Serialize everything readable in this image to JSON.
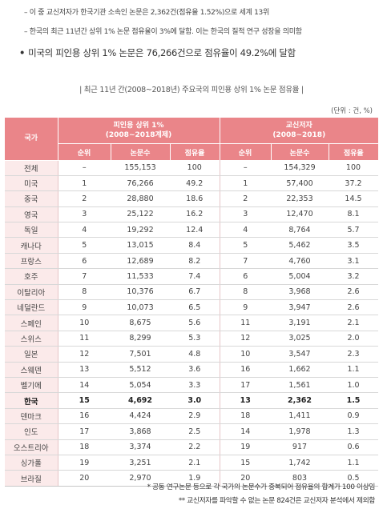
{
  "bullets": {
    "line1": "– 이 중 교신저자가 한국기관 소속인 논문은 2,362건(점유율 1.52%)으로 세계 13위",
    "line2": "– 한국의 최근 11년간 상위 1% 논문 점유율이 3%에 달함. 이는 한국의 질적 연구 성장을 의미함",
    "main_dot": "•",
    "main": "미국의 피인용 상위 1% 논문은 76,266건으로 점유율이 49.2%에 달함"
  },
  "caption": "| 최근 11년 간(2008~2018년) 주요국의 피인용 상위 1% 논문 점유율 |",
  "unit": "(단위 : 건, %)",
  "table": {
    "header": {
      "country": "국가",
      "group1": "피인용 상위 1%",
      "group1_sub": "(2008~2018계제)",
      "group2": "교신저자",
      "group2_sub": "(2008~2018)",
      "rank": "순위",
      "count": "논문수",
      "share": "점유율"
    },
    "rows": [
      [
        "전체",
        "–",
        "155,153",
        "100",
        "–",
        "154,329",
        "100"
      ],
      [
        "미국",
        "1",
        "76,266",
        "49.2",
        "1",
        "57,400",
        "37.2"
      ],
      [
        "중국",
        "2",
        "28,880",
        "18.6",
        "2",
        "22,353",
        "14.5"
      ],
      [
        "영국",
        "3",
        "25,122",
        "16.2",
        "3",
        "12,470",
        "8.1"
      ],
      [
        "독일",
        "4",
        "19,292",
        "12.4",
        "4",
        "8,764",
        "5.7"
      ],
      [
        "캐나다",
        "5",
        "13,015",
        "8.4",
        "5",
        "5,462",
        "3.5"
      ],
      [
        "프랑스",
        "6",
        "12,689",
        "8.2",
        "7",
        "4,760",
        "3.1"
      ],
      [
        "호주",
        "7",
        "11,533",
        "7.4",
        "6",
        "5,004",
        "3.2"
      ],
      [
        "이탈리아",
        "8",
        "10,376",
        "6.7",
        "8",
        "3,968",
        "2.6"
      ],
      [
        "네덜란드",
        "9",
        "10,073",
        "6.5",
        "9",
        "3,947",
        "2.6"
      ],
      [
        "스페인",
        "10",
        "8,675",
        "5.6",
        "11",
        "3,191",
        "2.1"
      ],
      [
        "스위스",
        "11",
        "8,299",
        "5.3",
        "12",
        "3,025",
        "2.0"
      ],
      [
        "일본",
        "12",
        "7,501",
        "4.8",
        "10",
        "3,547",
        "2.3"
      ],
      [
        "스웨덴",
        "13",
        "5,512",
        "3.6",
        "16",
        "1,662",
        "1.1"
      ],
      [
        "벨기에",
        "14",
        "5,054",
        "3.3",
        "17",
        "1,561",
        "1.0"
      ],
      [
        "한국",
        "15",
        "4,692",
        "3.0",
        "13",
        "2,362",
        "1.5"
      ],
      [
        "덴마크",
        "16",
        "4,424",
        "2.9",
        "18",
        "1,411",
        "0.9"
      ],
      [
        "인도",
        "17",
        "3,868",
        "2.5",
        "14",
        "1,978",
        "1.3"
      ],
      [
        "오스트리아",
        "18",
        "3,374",
        "2.2",
        "19",
        "917",
        "0.6"
      ],
      [
        "싱가폴",
        "19",
        "3,251",
        "2.1",
        "15",
        "1,742",
        "1.1"
      ],
      [
        "브라질",
        "20",
        "2,970",
        "1.9",
        "20",
        "803",
        "0.5"
      ]
    ],
    "highlight_row": "한국"
  },
  "notes": {
    "note1": "* 공동 연구논문 등으로 각 국가의 논문수가 중복되어 점유율의 합계가 100 이상임",
    "note2": "** 교신저자를 파악할 수 없는 논문 824건은 교신저자 분석에서 제외함"
  },
  "colors": {
    "header_bg": "#ea8589",
    "country_col_bg": "#fbeaea"
  }
}
